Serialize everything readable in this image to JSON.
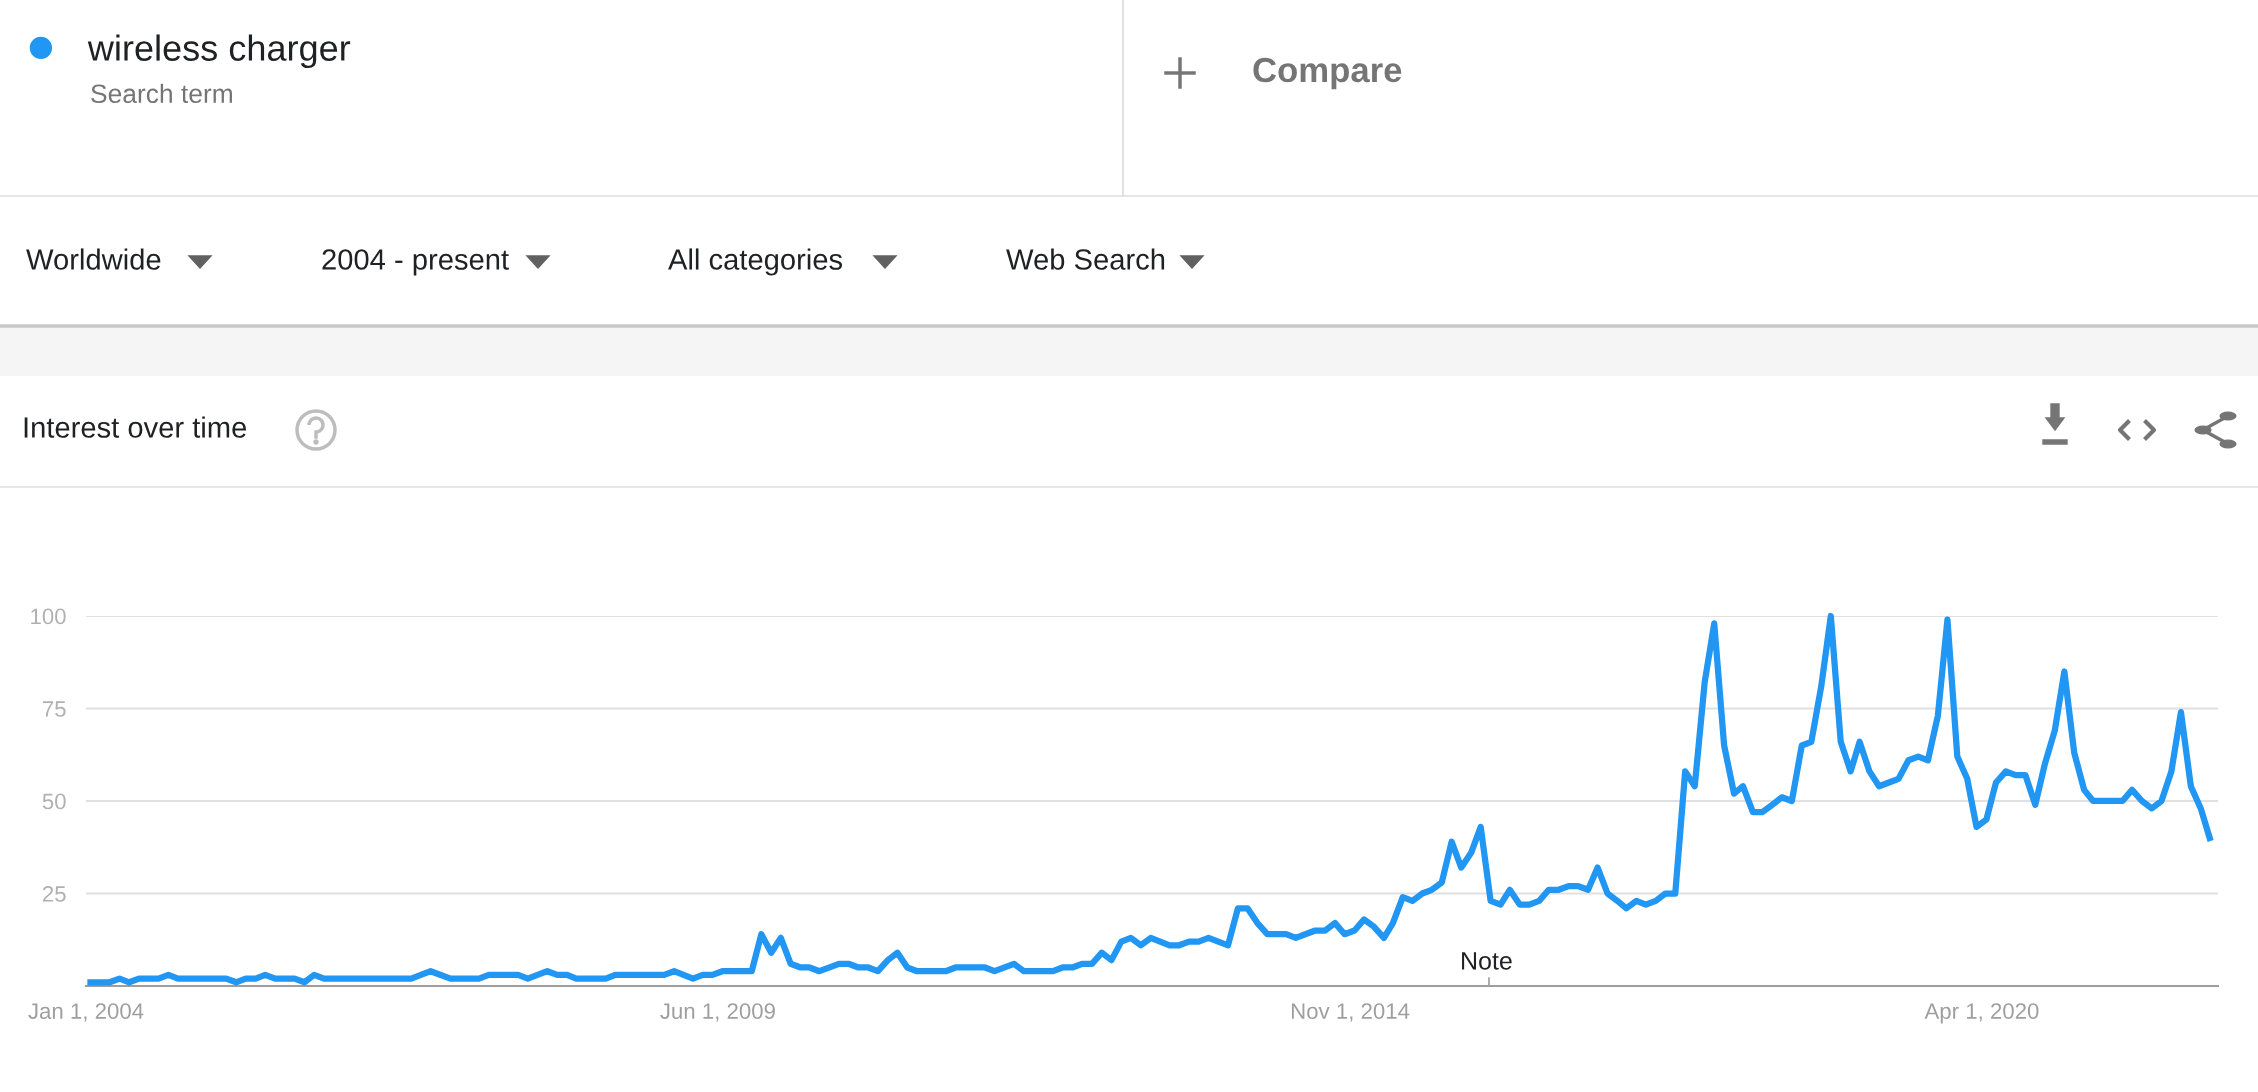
{
  "chart_data": {
    "type": "line",
    "title": "Interest over time",
    "annotations": [
      "Search term",
      "Compare",
      "Worldwide",
      "2004 - present",
      "All categories",
      "Web Search",
      "Note"
    ],
    "series": [
      {
        "name": "wireless charger",
        "color": "#2196f3",
        "x": [
          "2004-01",
          "2004-03",
          "2004-04",
          "2004-05",
          "2004-06",
          "2004-08",
          "2004-09",
          "2004-10",
          "2005-03",
          "2005-04",
          "2005-05",
          "2005-06",
          "2005-07",
          "2005-08",
          "2005-10",
          "2005-11",
          "2005-12",
          "2006-01",
          "2006-10",
          "2006-12",
          "2007-02",
          "2007-05",
          "2007-06",
          "2007-09",
          "2007-10",
          "2007-12",
          "2008-01",
          "2008-02",
          "2008-03",
          "2008-06",
          "2008-07",
          "2008-12",
          "2009-01",
          "2009-03",
          "2009-04",
          "2009-05",
          "2009-06",
          "2009-09",
          "2009-10",
          "2009-11",
          "2009-12",
          "2010-01",
          "2010-02",
          "2010-03",
          "2010-04",
          "2010-06",
          "2010-07",
          "2010-08",
          "2010-09",
          "2010-10",
          "2010-11",
          "2010-12",
          "2011-01",
          "2011-02",
          "2011-05",
          "2011-06",
          "2011-09",
          "2011-10",
          "2011-12",
          "2012-01",
          "2012-04",
          "2012-05",
          "2012-06",
          "2012-07",
          "2012-08",
          "2012-09",
          "2012-10",
          "2012-11",
          "2012-12",
          "2013-01",
          "2013-02",
          "2013-04",
          "2013-05",
          "2013-06",
          "2013-07",
          "2013-08",
          "2013-10",
          "2013-11",
          "2013-12",
          "2014-01",
          "2014-02",
          "2014-04",
          "2014-05",
          "2014-07",
          "2014-08",
          "2014-09",
          "2014-10",
          "2014-11",
          "2014-12",
          "2015-01",
          "2015-02",
          "2015-03",
          "2015-04",
          "2015-05",
          "2015-06",
          "2015-07",
          "2015-08",
          "2015-09",
          "2015-10",
          "2015-11",
          "2015-12",
          "2016-01",
          "2016-02",
          "2016-03",
          "2016-04",
          "2016-05",
          "2016-06",
          "2016-07",
          "2016-08",
          "2016-09",
          "2016-10",
          "2016-11",
          "2016-12",
          "2017-01",
          "2017-02",
          "2017-03",
          "2017-04",
          "2017-05",
          "2017-06",
          "2017-07",
          "2017-08",
          "2017-09",
          "2017-10",
          "2017-11",
          "2017-12",
          "2018-01",
          "2018-02",
          "2018-03",
          "2018-04",
          "2018-05",
          "2018-06",
          "2018-07",
          "2018-08",
          "2018-09",
          "2018-10",
          "2018-11",
          "2018-12",
          "2019-01",
          "2019-02",
          "2019-03",
          "2019-04",
          "2019-05",
          "2019-06",
          "2019-07",
          "2019-08",
          "2019-09",
          "2019-10",
          "2019-11",
          "2019-12",
          "2020-01",
          "2020-02",
          "2020-03",
          "2020-04",
          "2020-05",
          "2020-06",
          "2020-07",
          "2020-08",
          "2020-09",
          "2020-10",
          "2020-11",
          "2020-12",
          "2021-01",
          "2021-02",
          "2021-03",
          "2021-04",
          "2021-05",
          "2021-06",
          "2021-07",
          "2021-08",
          "2021-09",
          "2021-10",
          "2021-11",
          "2021-12",
          "2022-01",
          "2022-02",
          "2022-03"
        ],
        "values": [
          1,
          1,
          2,
          1,
          2,
          2,
          3,
          2,
          2,
          1,
          2,
          2,
          3,
          2,
          2,
          1,
          3,
          2,
          2,
          4,
          2,
          2,
          3,
          3,
          2,
          4,
          3,
          3,
          2,
          2,
          3,
          3,
          4,
          2,
          3,
          3,
          4,
          4,
          14,
          9,
          13,
          6,
          5,
          5,
          4,
          6,
          6,
          5,
          5,
          4,
          7,
          9,
          5,
          4,
          4,
          5,
          5,
          4,
          6,
          4,
          4,
          5,
          5,
          6,
          6,
          9,
          7,
          12,
          13,
          11,
          13,
          11,
          11,
          12,
          12,
          13,
          11,
          21,
          21,
          17,
          14,
          14,
          13,
          15,
          15,
          17,
          14,
          15,
          18,
          16,
          13,
          17,
          24,
          23,
          25,
          26,
          28,
          39,
          32,
          36,
          43,
          23,
          22,
          26,
          22,
          22,
          23,
          26,
          26,
          27,
          27,
          26,
          32,
          25,
          23,
          21,
          23,
          22,
          23,
          25,
          25,
          58,
          54,
          82,
          98,
          65,
          52,
          54,
          47,
          47,
          49,
          51,
          50,
          65,
          66,
          81,
          100,
          66,
          58,
          66,
          58,
          54,
          55,
          56,
          61,
          62,
          61,
          73,
          99,
          62,
          56,
          43,
          45,
          55,
          58,
          57,
          57,
          49,
          60,
          69,
          85,
          63,
          53,
          50,
          50,
          50,
          50,
          53,
          50,
          48,
          50,
          58,
          74,
          54,
          48,
          40
        ]
      }
    ],
    "xlim": [
      "2004-01-01",
      "2022-04-10"
    ],
    "xticks": [
      {
        "value": "2004-01-01",
        "label": "Jan 1, 2004"
      },
      {
        "value": "2009-06-01",
        "label": "Jun 1, 2009"
      },
      {
        "value": "2014-11-01",
        "label": "Nov 1, 2014"
      },
      {
        "value": "2020-04-01",
        "label": "Apr 1, 2020"
      }
    ],
    "ylim": [
      0,
      100
    ],
    "yticks": [
      25,
      50,
      75,
      100
    ],
    "grid": "y",
    "legend": "top left",
    "marker": "none",
    "line_style": "solid"
  }
}
